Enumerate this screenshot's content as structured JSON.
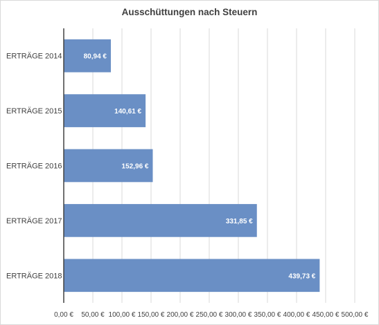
{
  "chart_data": {
    "type": "bar",
    "orientation": "horizontal",
    "title": "Ausschüttungen nach Steuern",
    "categories": [
      "ERTRÄGE 2014",
      "ERTRÄGE 2015",
      "ERTRÄGE 2016",
      "ERTRÄGE 2017",
      "ERTRÄGE 2018"
    ],
    "values": [
      80.94,
      140.61,
      152.96,
      331.85,
      439.73
    ],
    "data_labels": [
      "80,94 €",
      "140,61 €",
      "152,96 €",
      "331,85 €",
      "439,73 €"
    ],
    "x_ticks": [
      0,
      50,
      100,
      150,
      200,
      250,
      300,
      350,
      400,
      450,
      500
    ],
    "x_tick_labels": [
      "0,00 €",
      "50,00 €",
      "100,00 €",
      "150,00 €",
      "200,00 €",
      "250,00 €",
      "300,00 €",
      "350,00 €",
      "400,00 €",
      "450,00 €",
      "500,00 €"
    ],
    "xlim": [
      0,
      500
    ],
    "xlabel": "",
    "ylabel": "",
    "grid": "vertical",
    "legend": "none",
    "bar_color": "#6a8fc5",
    "grid_color": "#d9d9d9",
    "axis_color": "#404040"
  }
}
